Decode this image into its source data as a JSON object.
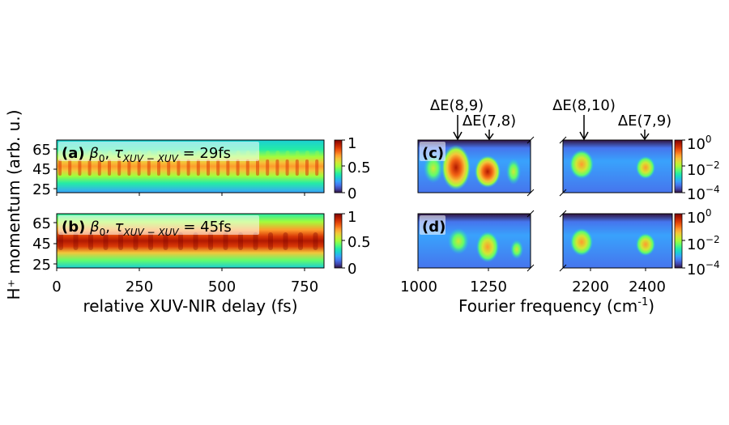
{
  "figure": {
    "shared_ylabel": "H⁺ momentum (arb. u.)",
    "left_xlabel": "relative XUV-NIR delay (fs)",
    "right_xlabel": "Fourier frequency (cm⁻¹)",
    "right_xlabel_suffix": "-1"
  },
  "colors": {
    "colormap": [
      "#30123b",
      "#4145ab",
      "#4675ed",
      "#39a2fc",
      "#1bcfd4",
      "#24eca6",
      "#61fc6c",
      "#a4fc3b",
      "#d1e834",
      "#f3c63a",
      "#fe9b2d",
      "#f36315",
      "#d93806",
      "#b11901",
      "#7a0403"
    ]
  },
  "panels": {
    "a": {
      "tag": "(a)",
      "beta": "β",
      "beta_sub": "0",
      "tau": "τ",
      "tau_sub": "XUV − XUV",
      "eq": " =  29fs"
    },
    "b": {
      "tag": "(b)",
      "beta": "β",
      "beta_sub": "0",
      "tau": "τ",
      "tau_sub": "XUV − XUV",
      "eq": " =  45fs"
    },
    "c": {
      "tag": "(c)"
    },
    "d": {
      "tag": "(d)"
    }
  },
  "annotations": [
    {
      "label": "ΔE(8,9)",
      "x": 1135
    },
    {
      "label": "ΔE(7,8)",
      "x": 1250
    },
    {
      "label": "ΔE(8,10)",
      "x": 2170
    },
    {
      "label": "ΔE(7,9)",
      "x": 2400
    }
  ],
  "colorbar_linear": {
    "ticks": [
      "1",
      "0.5",
      "0"
    ],
    "values": [
      1,
      0.5,
      0
    ]
  },
  "colorbar_log": {
    "ticks": [
      {
        "base": "10",
        "exp": "0"
      },
      {
        "base": "10",
        "exp": "−2"
      },
      {
        "base": "10",
        "exp": "−4"
      }
    ],
    "exponents": [
      0,
      -2,
      -4
    ]
  },
  "chart_data": [
    {
      "type": "heatmap",
      "panel": "a",
      "title": "(a) β0, τXUV−XUV = 29fs",
      "xlabel": "relative XUV-NIR delay (fs)",
      "ylabel": "H⁺ momentum (arb. u.)",
      "xlim": [
        0,
        800
      ],
      "ylim": [
        23,
        72
      ],
      "xticks": [
        0,
        250,
        500,
        750
      ],
      "yticks": [
        25,
        45,
        65
      ],
      "colorbar": {
        "range": [
          0,
          1
        ],
        "ticks": [
          0,
          0.5,
          1
        ]
      }
    },
    {
      "type": "heatmap",
      "panel": "b",
      "title": "(b) β0, τXUV−XUV = 45fs",
      "xlabel": "relative XUV-NIR delay (fs)",
      "ylabel": "H⁺ momentum (arb. u.)",
      "xlim": [
        0,
        800
      ],
      "ylim": [
        23,
        72
      ],
      "xticks": [
        0,
        250,
        500,
        750
      ],
      "yticks": [
        25,
        45,
        65
      ],
      "colorbar": {
        "range": [
          0,
          1
        ],
        "ticks": [
          0,
          0.5,
          1
        ]
      }
    },
    {
      "type": "heatmap",
      "panel": "c",
      "title": "(c)",
      "scale": "log",
      "xlabel": "Fourier frequency (cm⁻¹)",
      "broken_x_axis": true,
      "xlim_segments": [
        [
          1000,
          1400
        ],
        [
          2100,
          2500
        ]
      ],
      "xticks": [
        1000,
        1250,
        2200,
        2400
      ],
      "colorbar": {
        "range": [
          "1e-4",
          "1e0"
        ],
        "ticks": [
          "1e0",
          "1e-2",
          "1e-4"
        ]
      },
      "features": [
        "ΔE(8,9) ≈ 1135 cm⁻¹",
        "ΔE(7,8) ≈ 1250 cm⁻¹",
        "ΔE(8,10) ≈ 2170 cm⁻¹",
        "ΔE(7,9) ≈ 2400 cm⁻¹"
      ]
    },
    {
      "type": "heatmap",
      "panel": "d",
      "title": "(d)",
      "scale": "log",
      "xlabel": "Fourier frequency (cm⁻¹)",
      "broken_x_axis": true,
      "xlim_segments": [
        [
          1000,
          1400
        ],
        [
          2100,
          2500
        ]
      ],
      "xticks": [
        1000,
        1250,
        2200,
        2400
      ],
      "colorbar": {
        "range": [
          "1e-4",
          "1e0"
        ],
        "ticks": [
          "1e0",
          "1e-2",
          "1e-4"
        ]
      }
    }
  ],
  "ticks": {
    "left_x": [
      "0",
      "250",
      "500",
      "750"
    ],
    "left_y": [
      "65",
      "45",
      "25"
    ],
    "right_x": [
      "1000",
      "1250",
      "2200",
      "2400"
    ]
  }
}
